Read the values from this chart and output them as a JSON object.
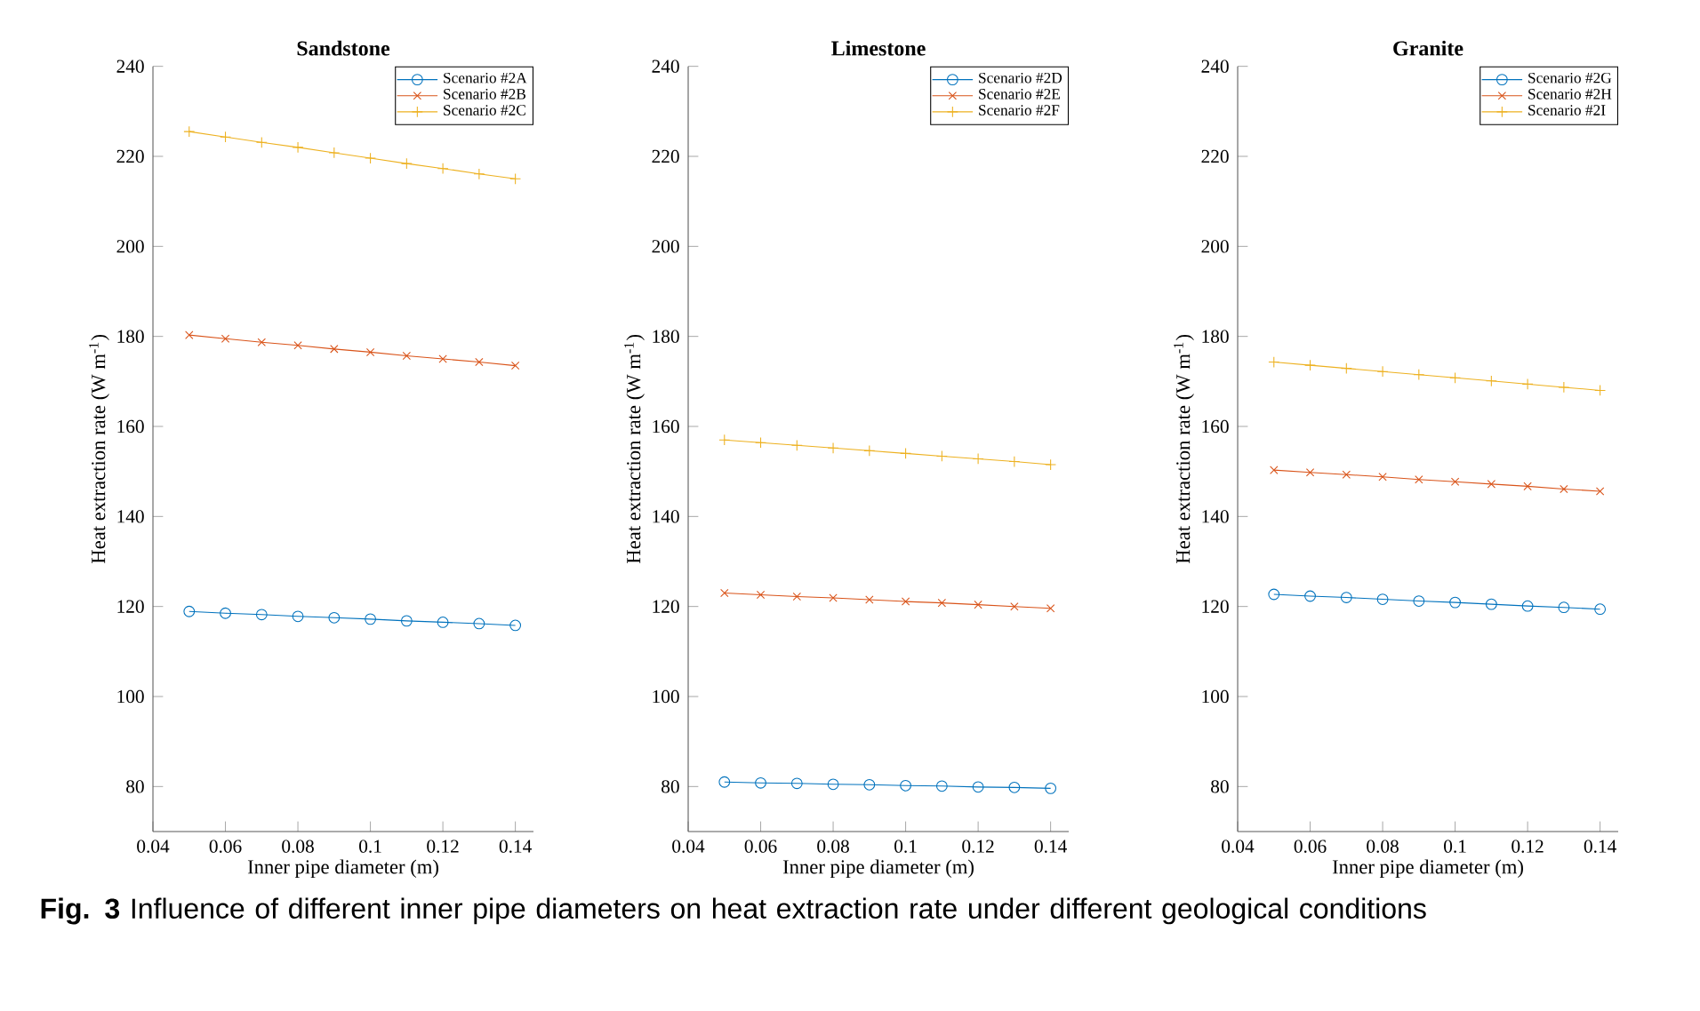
{
  "chart_data": [
    {
      "type": "line",
      "title": "Sandstone",
      "xlabel": "Inner pipe diameter (m)",
      "ylabel": "Heat extraction rate (W m$^{-1}$)",
      "x": [
        0.05,
        0.06,
        0.07,
        0.08,
        0.09,
        0.1,
        0.11,
        0.12,
        0.13,
        0.14
      ],
      "xlim": [
        0.04,
        0.145
      ],
      "ylim": [
        70,
        240
      ],
      "xticks": [
        0.04,
        0.06,
        0.08,
        0.1,
        0.12,
        0.14
      ],
      "yticks": [
        80,
        100,
        120,
        140,
        160,
        180,
        200,
        220,
        240
      ],
      "legend": "top right",
      "grid": false,
      "series": [
        {
          "name": "Scenario #2A",
          "color": "#0072bd",
          "marker": "circle",
          "values": [
            118.9,
            118.5,
            118.2,
            117.8,
            117.5,
            117.2,
            116.8,
            116.5,
            116.2,
            115.8
          ]
        },
        {
          "name": "Scenario #2B",
          "color": "#d95319",
          "marker": "cross",
          "values": [
            180.3,
            179.5,
            178.7,
            178.0,
            177.2,
            176.5,
            175.7,
            175.0,
            174.3,
            173.5
          ]
        },
        {
          "name": "Scenario #2C",
          "color": "#edb120",
          "marker": "plus",
          "values": [
            225.5,
            224.3,
            223.1,
            222.0,
            220.8,
            219.6,
            218.4,
            217.3,
            216.1,
            215.0
          ]
        }
      ],
      "annotations": [
        "**Fig. 3** Influence of different inner pipe diameters on heat extraction rate under different geological conditions"
      ]
    },
    {
      "type": "line",
      "title": "Limestone",
      "xlabel": "Inner pipe diameter (m)",
      "ylabel": "Heat extraction rate (W m$^{-1}$)",
      "x": [
        0.05,
        0.06,
        0.07,
        0.08,
        0.09,
        0.1,
        0.11,
        0.12,
        0.13,
        0.14
      ],
      "xlim": [
        0.04,
        0.145
      ],
      "ylim": [
        70,
        240
      ],
      "xticks": [
        0.04,
        0.06,
        0.08,
        0.1,
        0.12,
        0.14
      ],
      "yticks": [
        80,
        100,
        120,
        140,
        160,
        180,
        200,
        220,
        240
      ],
      "legend": "top right",
      "grid": false,
      "series": [
        {
          "name": "Scenario #2D",
          "color": "#0072bd",
          "marker": "circle",
          "values": [
            81.0,
            80.8,
            80.7,
            80.5,
            80.4,
            80.2,
            80.1,
            79.9,
            79.8,
            79.6
          ]
        },
        {
          "name": "Scenario #2E",
          "color": "#d95319",
          "marker": "cross",
          "values": [
            123.0,
            122.6,
            122.2,
            121.9,
            121.5,
            121.1,
            120.8,
            120.4,
            120.0,
            119.6
          ]
        },
        {
          "name": "Scenario #2F",
          "color": "#edb120",
          "marker": "plus",
          "values": [
            157.0,
            156.4,
            155.8,
            155.2,
            154.6,
            154.0,
            153.4,
            152.8,
            152.2,
            151.5
          ]
        }
      ]
    },
    {
      "type": "line",
      "title": "Granite",
      "xlabel": "Inner pipe diameter (m)",
      "ylabel": "Heat extraction rate (W m$^{-1}$)",
      "x": [
        0.05,
        0.06,
        0.07,
        0.08,
        0.09,
        0.1,
        0.11,
        0.12,
        0.13,
        0.14
      ],
      "xlim": [
        0.04,
        0.145
      ],
      "ylim": [
        70,
        240
      ],
      "xticks": [
        0.04,
        0.06,
        0.08,
        0.1,
        0.12,
        0.14
      ],
      "yticks": [
        80,
        100,
        120,
        140,
        160,
        180,
        200,
        220,
        240
      ],
      "legend": "top right",
      "grid": false,
      "series": [
        {
          "name": "Scenario #2G",
          "color": "#0072bd",
          "marker": "circle",
          "values": [
            122.7,
            122.3,
            122.0,
            121.6,
            121.2,
            120.9,
            120.5,
            120.1,
            119.8,
            119.4
          ]
        },
        {
          "name": "Scenario #2H",
          "color": "#d95319",
          "marker": "cross",
          "values": [
            150.3,
            149.8,
            149.3,
            148.8,
            148.2,
            147.7,
            147.2,
            146.7,
            146.1,
            145.6
          ]
        },
        {
          "name": "Scenario #2I",
          "color": "#edb120",
          "marker": "plus",
          "values": [
            174.3,
            173.6,
            172.9,
            172.2,
            171.5,
            170.8,
            170.1,
            169.4,
            168.7,
            168.0
          ]
        }
      ]
    }
  ]
}
